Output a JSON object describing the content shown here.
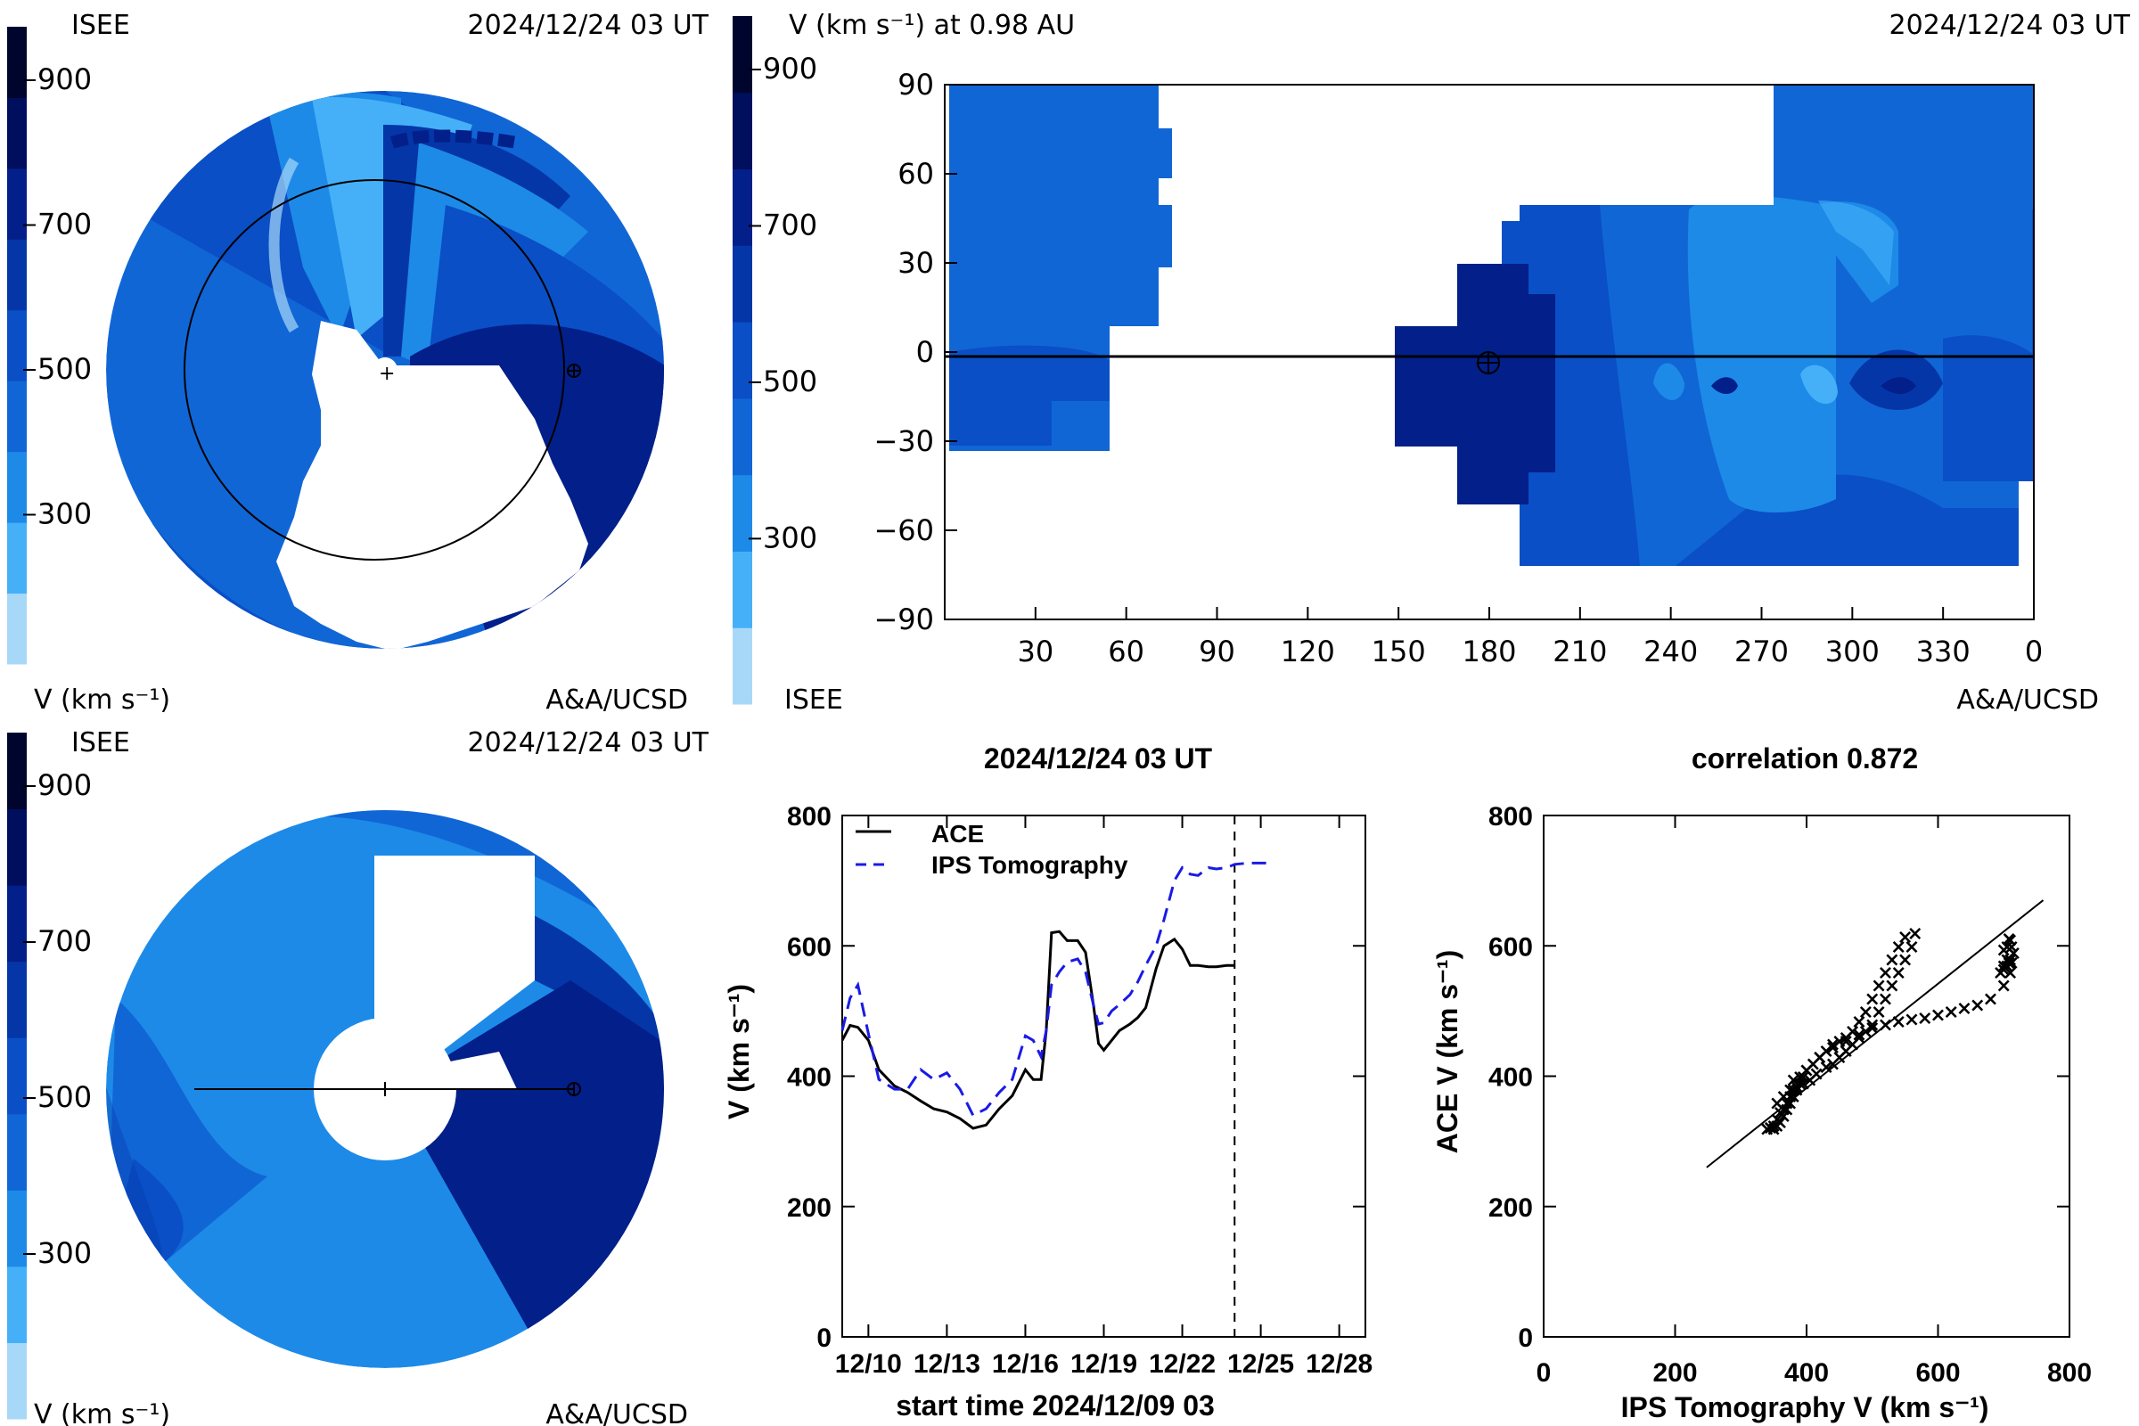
{
  "panels": {
    "polar_top": {
      "left_label": "ISEE",
      "date": "2024/12/24 03 UT",
      "units": "V (km s⁻¹)",
      "credit": "A&A/UCSD"
    },
    "map": {
      "title": "V (km s⁻¹) at 0.98 AU",
      "date": "2024/12/24 03 UT",
      "left_label": "ISEE",
      "credit": "A&A/UCSD"
    },
    "polar_bottom": {
      "left_label": "ISEE",
      "date": "2024/12/24 03 UT",
      "units": "V (km s⁻¹)",
      "credit": "A&A/UCSD"
    }
  },
  "colorbar": {
    "ticks": [
      "900",
      "700",
      "500",
      "300"
    ],
    "colors": [
      "#a8d8f8",
      "#45b0f8",
      "#1d8ae8",
      "#1166d6",
      "#0a4fc6",
      "#0536a8",
      "#021f8a",
      "#000e5e",
      "#00052e"
    ]
  },
  "chart_data": [
    {
      "type": "heatmap",
      "xlabel": "",
      "ylabel": "",
      "xlim": [
        0,
        360
      ],
      "ylim": [
        -90,
        90
      ],
      "x_tick_labels": [
        "30",
        "60",
        "90",
        "120",
        "150",
        "180",
        "210",
        "240",
        "270",
        "300",
        "330",
        "0"
      ],
      "y_tick_labels": [
        "90",
        "60",
        "30",
        "0",
        "−30",
        "−60",
        "−90"
      ],
      "earth_marker": {
        "lon": 180,
        "lat": 0
      }
    },
    {
      "type": "line",
      "title": "2024/12/24 03 UT",
      "xlabel": "start time 2024/12/09 03",
      "ylabel": "V (km s⁻¹)",
      "xlim": [
        0,
        20
      ],
      "ylim": [
        0,
        800
      ],
      "x_tick_labels": [
        "12/10",
        "12/13",
        "12/16",
        "12/19",
        "12/22",
        "12/25",
        "12/28"
      ],
      "x_ticks": [
        1,
        4,
        7,
        10,
        13,
        16,
        19
      ],
      "y_ticks": [
        0,
        200,
        400,
        600,
        800
      ],
      "now_marker_x": 15.0,
      "series": [
        {
          "name": "ACE",
          "color": "#000000",
          "style": "solid",
          "x": [
            0,
            0.3,
            0.6,
            1.0,
            1.4,
            2.0,
            2.5,
            3.0,
            3.5,
            4.0,
            4.5,
            5.0,
            5.5,
            6.0,
            6.5,
            7.0,
            7.3,
            7.6,
            7.8,
            8.0,
            8.3,
            8.6,
            9.0,
            9.3,
            9.6,
            9.8,
            10.0,
            10.3,
            10.6,
            11.0,
            11.3,
            11.6,
            12.0,
            12.3,
            12.7,
            13.0,
            13.3,
            13.6,
            14.0,
            14.3,
            14.7,
            15.0
          ],
          "y": [
            455,
            478,
            475,
            455,
            410,
            385,
            375,
            362,
            350,
            345,
            335,
            320,
            325,
            350,
            370,
            410,
            395,
            395,
            470,
            620,
            622,
            608,
            608,
            590,
            510,
            450,
            440,
            455,
            470,
            480,
            490,
            505,
            565,
            600,
            610,
            595,
            570,
            570,
            568,
            568,
            570,
            570
          ]
        },
        {
          "name": "IPS Tomography",
          "color": "#1a1ae6",
          "style": "dashed",
          "x": [
            0,
            0.3,
            0.6,
            1.0,
            1.4,
            2.0,
            2.5,
            3.0,
            3.5,
            4.0,
            4.5,
            5.0,
            5.5,
            6.0,
            6.5,
            7.0,
            7.3,
            7.6,
            7.8,
            8.0,
            8.3,
            8.6,
            9.0,
            9.3,
            9.6,
            9.8,
            10.0,
            10.3,
            10.6,
            11.0,
            11.3,
            11.6,
            12.0,
            12.3,
            12.7,
            13.0,
            13.3,
            13.6,
            14.0,
            14.3,
            14.7,
            15.0,
            15.5,
            16.0,
            16.5
          ],
          "y": [
            470,
            520,
            540,
            465,
            395,
            380,
            380,
            410,
            395,
            405,
            380,
            340,
            350,
            375,
            395,
            462,
            455,
            430,
            470,
            540,
            560,
            575,
            580,
            560,
            510,
            480,
            482,
            500,
            510,
            525,
            545,
            570,
            600,
            640,
            700,
            720,
            710,
            708,
            720,
            718,
            720,
            725,
            727,
            727,
            727
          ]
        }
      ]
    },
    {
      "type": "scatter",
      "title": "correlation 0.872",
      "xlabel": "IPS Tomography V (km s⁻¹)",
      "ylabel": "ACE V (km s⁻¹)",
      "xlim": [
        0,
        800
      ],
      "ylim": [
        0,
        800
      ],
      "x_ticks": [
        0,
        200,
        400,
        600,
        800
      ],
      "y_ticks": [
        0,
        200,
        400,
        600,
        800
      ],
      "fit_line": {
        "x": [
          248,
          760
        ],
        "y": [
          260,
          670
        ]
      },
      "x": [
        340,
        345,
        350,
        355,
        360,
        365,
        370,
        375,
        380,
        385,
        395,
        405,
        415,
        430,
        440,
        450,
        460,
        470,
        480,
        490,
        500,
        510,
        520,
        530,
        540,
        550,
        560,
        565,
        550,
        540,
        530,
        520,
        510,
        500,
        490,
        480,
        470,
        460,
        450,
        440,
        430,
        420,
        410,
        400,
        395,
        390,
        385,
        380,
        375,
        370,
        365,
        360,
        355,
        350,
        345,
        355,
        365,
        375,
        380,
        390,
        400,
        420,
        440,
        460,
        480,
        500,
        520,
        540,
        560,
        580,
        600,
        620,
        640,
        660,
        680,
        700,
        710,
        712,
        715,
        712,
        710,
        708,
        705,
        700,
        705,
        700,
        695,
        700,
        705,
        708,
        710
      ],
      "y": [
        320,
        322,
        325,
        335,
        345,
        350,
        360,
        370,
        380,
        385,
        390,
        395,
        405,
        415,
        420,
        430,
        440,
        450,
        460,
        470,
        480,
        500,
        520,
        540,
        560,
        580,
        600,
        620,
        615,
        600,
        580,
        560,
        540,
        520,
        500,
        485,
        470,
        460,
        455,
        450,
        440,
        430,
        420,
        410,
        400,
        390,
        380,
        370,
        360,
        350,
        340,
        330,
        325,
        320,
        322,
        360,
        370,
        380,
        395,
        400,
        410,
        430,
        445,
        455,
        465,
        475,
        480,
        485,
        488,
        490,
        495,
        500,
        505,
        510,
        520,
        540,
        560,
        575,
        590,
        600,
        610,
        612,
        600,
        595,
        580,
        570,
        560,
        565,
        570,
        575,
        580
      ]
    }
  ]
}
